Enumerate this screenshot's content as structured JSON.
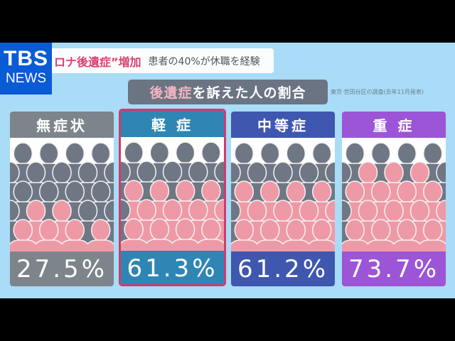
{
  "logo": {
    "line1": "TBS",
    "line2": "NEWS"
  },
  "headline": {
    "highlight": "ロナ後遺症”増加",
    "subtext": "患者の40%が休職を経験"
  },
  "subtitle": {
    "highlight": "後遺症",
    "rest": "を訴えた人の割合"
  },
  "source": "東京·世田谷区の調査(去年11月発表)",
  "colors": {
    "background": "#a9dcf6",
    "pink_figure": "#ee9aa6",
    "gray_figure": "#6f7784",
    "selected_border": "#d33a6e"
  },
  "cards": [
    {
      "label": "無症状",
      "value": "27.5%",
      "color": "#7d848b",
      "selected": false
    },
    {
      "label": "軽 症",
      "value": "61.3%",
      "color": "#2f86b3",
      "selected": true
    },
    {
      "label": "中等症",
      "value": "61.2%",
      "color": "#3f57ae",
      "selected": false
    },
    {
      "label": "重 症",
      "value": "73.7%",
      "color": "#9b55d6",
      "selected": false
    }
  ],
  "chart_data": {
    "type": "bar",
    "title": "後遺症を訴えた人の割合",
    "subtitle": "東京·世田谷区の調査(去年11月発表)",
    "categories": [
      "無症状",
      "軽症",
      "中等症",
      "重症"
    ],
    "values": [
      27.5,
      61.3,
      61.2,
      73.7
    ],
    "unit": "%",
    "xlabel": "",
    "ylabel": "",
    "ylim": [
      0,
      100
    ]
  }
}
